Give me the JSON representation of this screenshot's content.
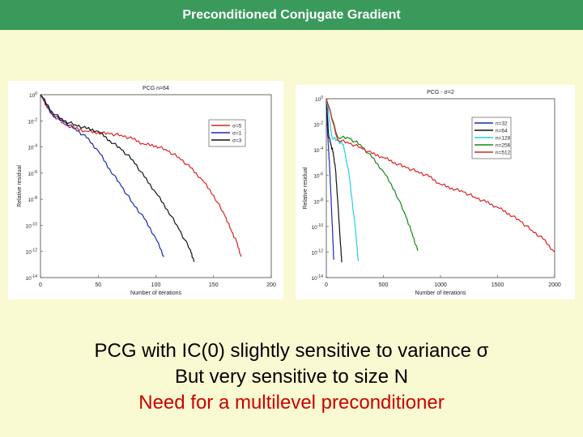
{
  "header": {
    "title": "Preconditioned Conjugate Gradient"
  },
  "captions": {
    "line1": "PCG with IC(0) slightly sensitive to variance σ",
    "line2": "But very sensitive to size N",
    "line3": "Need for a multilevel preconditioner",
    "line3_color": "#cc0000"
  },
  "chart_data": [
    {
      "type": "line",
      "title": "PCG n=64",
      "xlabel": "Number of iterations",
      "ylabel": "Relative residual",
      "xlim": [
        0,
        200
      ],
      "ylim_exp": [
        -14,
        0
      ],
      "xticks": [
        "0",
        "50",
        "100",
        "150",
        "200"
      ],
      "yticks_exp": [
        0,
        -2,
        -4,
        -6,
        -8,
        -10,
        -12,
        -14
      ],
      "y_scale": "log",
      "legend_position": "top-right",
      "grid": false,
      "series": [
        {
          "name": "σ=5",
          "color": "#dd2222",
          "x": [
            0,
            5,
            10,
            20,
            30,
            40,
            50,
            60,
            70,
            80,
            90,
            100,
            110,
            120,
            130,
            140,
            150,
            160,
            165,
            170,
            174
          ],
          "log10_y": [
            0,
            -0.8,
            -1.5,
            -2.2,
            -2.6,
            -2.8,
            -2.9,
            -3.0,
            -3.1,
            -3.4,
            -3.8,
            -3.9,
            -4.3,
            -4.8,
            -5.6,
            -6.5,
            -7.7,
            -9.3,
            -10.3,
            -11.3,
            -12.4
          ]
        },
        {
          "name": "σ=1",
          "color": "#1a2aaa",
          "x": [
            0,
            10,
            20,
            30,
            40,
            50,
            60,
            70,
            80,
            90,
            100,
            107
          ],
          "log10_y": [
            0,
            -1.5,
            -2.1,
            -2.6,
            -3.3,
            -4.3,
            -5.7,
            -7.0,
            -8.3,
            -9.5,
            -11.0,
            -12.4
          ]
        },
        {
          "name": "σ=3",
          "color": "#111111",
          "x": [
            0,
            10,
            20,
            30,
            40,
            50,
            60,
            70,
            80,
            90,
            100,
            110,
            120,
            130,
            133
          ],
          "log10_y": [
            0,
            -1.3,
            -2.0,
            -2.3,
            -2.6,
            -2.8,
            -3.5,
            -4.2,
            -5.0,
            -6.3,
            -7.5,
            -8.8,
            -10.3,
            -11.9,
            -12.8
          ]
        }
      ]
    },
    {
      "type": "line",
      "title": "PCG - σ=2",
      "xlabel": "Number of iterations",
      "ylabel": "Relative residual",
      "xlim": [
        0,
        2000
      ],
      "ylim_exp": [
        -14,
        0
      ],
      "xticks": [
        "0",
        "500",
        "1000",
        "1500",
        "2000"
      ],
      "yticks_exp": [
        0,
        -2,
        -4,
        -6,
        -8,
        -10,
        -12,
        -14
      ],
      "y_scale": "log",
      "legend_position": "top-right",
      "grid": false,
      "series": [
        {
          "name": "n=32",
          "color": "#1a2aaa",
          "x": [
            0,
            10,
            20,
            30,
            40,
            50,
            60,
            65
          ],
          "log10_y": [
            0,
            -2.5,
            -4.0,
            -5.5,
            -7.5,
            -9.5,
            -11.5,
            -12.6
          ]
        },
        {
          "name": "n=64",
          "color": "#111111",
          "x": [
            0,
            20,
            40,
            60,
            80,
            100,
            120,
            135
          ],
          "log10_y": [
            0,
            -2.8,
            -3.6,
            -4.2,
            -5.5,
            -8.0,
            -10.8,
            -12.8
          ]
        },
        {
          "name": "n=128",
          "color": "#22ccee",
          "x": [
            0,
            50,
            100,
            150,
            200,
            250,
            280
          ],
          "log10_y": [
            0,
            -3.0,
            -3.3,
            -3.6,
            -6.0,
            -9.8,
            -12.7
          ]
        },
        {
          "name": "n=256",
          "color": "#188818",
          "x": [
            0,
            100,
            200,
            300,
            400,
            500,
            600,
            700,
            750,
            800
          ],
          "log10_y": [
            0,
            -3.0,
            -3.1,
            -3.6,
            -4.6,
            -5.7,
            -7.2,
            -9.3,
            -10.5,
            -11.9
          ]
        },
        {
          "name": "n=512",
          "color": "#dd2222",
          "x": [
            0,
            100,
            200,
            300,
            400,
            500,
            600,
            700,
            800,
            900,
            1000,
            1100,
            1200,
            1300,
            1400,
            1500,
            1600,
            1700,
            1800,
            1900,
            2000
          ],
          "log10_y": [
            0,
            -3.2,
            -3.5,
            -3.8,
            -4.3,
            -4.6,
            -5.0,
            -5.4,
            -5.7,
            -6.1,
            -6.7,
            -7.0,
            -7.3,
            -7.7,
            -8.1,
            -8.5,
            -9.0,
            -9.6,
            -10.3,
            -11.0,
            -12.0
          ]
        }
      ]
    }
  ]
}
